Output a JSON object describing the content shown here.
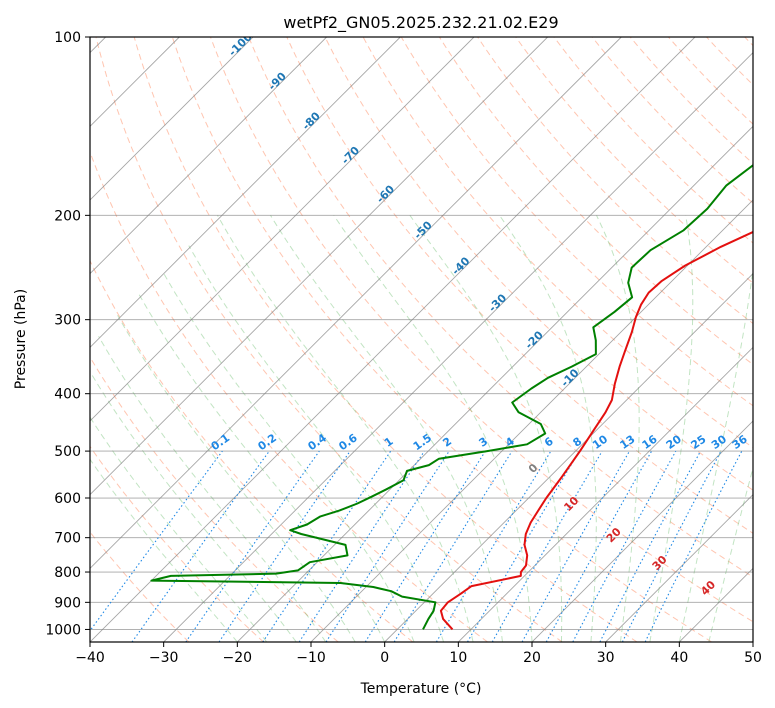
{
  "chart_data": {
    "type": "line",
    "subtype": "skew-T log-P diagram",
    "title": "wetPf2_GN05.2025.232.21.02.E29",
    "xlabel": "Temperature (°C)",
    "ylabel": "Pressure (hPa)",
    "xlim": [
      -40,
      50
    ],
    "ylim": [
      1050,
      100
    ],
    "y_scale": "log",
    "x_ticks": [
      "−40",
      "−30",
      "−20",
      "−10",
      "0",
      "10",
      "20",
      "30",
      "40",
      "50"
    ],
    "y_ticks": [
      {
        "p": 100,
        "label": "100"
      },
      {
        "p": 200,
        "label": "200"
      },
      {
        "p": 300,
        "label": "300"
      },
      {
        "p": 400,
        "label": "400"
      },
      {
        "p": 500,
        "label": "500"
      },
      {
        "p": 600,
        "label": "600"
      },
      {
        "p": 700,
        "label": "700"
      },
      {
        "p": 800,
        "label": "800"
      },
      {
        "p": 900,
        "label": "900"
      },
      {
        "p": 1000,
        "label": "1000"
      }
    ],
    "grid": true,
    "colors": {
      "temperature": "#e3100f",
      "dewpoint": "#008000",
      "isotherm": "#808080",
      "dry_adiabat": "#ff7f50",
      "moist_adiabat": "#66bb6a",
      "mixing_ratio": "#1e88e5",
      "isotherm_label": "#1f77b4",
      "theta_label_warm": "#d62728",
      "theta_label_zero": "#808080"
    },
    "series": [
      {
        "key": "temperature",
        "points": [
          [
            7.5,
            1000
          ],
          [
            4.8,
            960
          ],
          [
            3.4,
            930
          ],
          [
            3.2,
            900
          ],
          [
            3.8,
            870
          ],
          [
            4.2,
            845
          ],
          [
            9.5,
            812
          ],
          [
            9.0,
            800
          ],
          [
            8.8,
            780
          ],
          [
            7.6,
            750
          ],
          [
            5.8,
            720
          ],
          [
            4.5,
            690
          ],
          [
            3.6,
            660
          ],
          [
            3.0,
            630
          ],
          [
            2.4,
            600
          ],
          [
            1.6,
            550
          ],
          [
            0.6,
            500
          ],
          [
            -0.4,
            460
          ],
          [
            -1.2,
            430
          ],
          [
            -2.0,
            410
          ],
          [
            -3.8,
            385
          ],
          [
            -5.5,
            360
          ],
          [
            -6.8,
            340
          ],
          [
            -8.5,
            315
          ],
          [
            -10.0,
            297
          ],
          [
            -11.0,
            283
          ],
          [
            -11.6,
            270
          ],
          [
            -11.4,
            258
          ],
          [
            -10.3,
            243
          ],
          [
            -8.0,
            226
          ],
          [
            -5.2,
            211
          ],
          [
            -2.0,
            198
          ],
          [
            2.0,
            186
          ],
          [
            6.0,
            174
          ],
          [
            10.0,
            160
          ],
          [
            14.0,
            147
          ],
          [
            18.0,
            133
          ],
          [
            22.0,
            120
          ],
          [
            26.0,
            110
          ],
          [
            30.0,
            100
          ]
        ]
      },
      {
        "key": "dewpoint",
        "points": [
          [
            3.5,
            1000
          ],
          [
            2.8,
            960
          ],
          [
            2.4,
            930
          ],
          [
            1.5,
            900
          ],
          [
            -3.8,
            880
          ],
          [
            -6.0,
            862
          ],
          [
            -9.0,
            848
          ],
          [
            -14.0,
            835
          ],
          [
            -40,
            827
          ],
          [
            -38.0,
            812
          ],
          [
            -24.0,
            805
          ],
          [
            -21.5,
            795
          ],
          [
            -21.0,
            770
          ],
          [
            -16.8,
            750
          ],
          [
            -18.5,
            720
          ],
          [
            -26.0,
            690
          ],
          [
            -28.0,
            680
          ],
          [
            -26.5,
            665
          ],
          [
            -25.8,
            645
          ],
          [
            -24.0,
            630
          ],
          [
            -22.5,
            613
          ],
          [
            -21.5,
            597
          ],
          [
            -20.5,
            580
          ],
          [
            -19.4,
            560
          ],
          [
            -20.2,
            540
          ],
          [
            -18.0,
            528
          ],
          [
            -17.5,
            515
          ],
          [
            -12.0,
            500
          ],
          [
            -7.5,
            487
          ],
          [
            -6.5,
            467
          ],
          [
            -8.4,
            450
          ],
          [
            -13.0,
            430
          ],
          [
            -15.2,
            414
          ],
          [
            -14.5,
            392
          ],
          [
            -13.7,
            376
          ],
          [
            -12.0,
            360
          ],
          [
            -10.4,
            343
          ],
          [
            -12.3,
            325
          ],
          [
            -14.4,
            309
          ],
          [
            -13.6,
            291
          ],
          [
            -13.2,
            275
          ],
          [
            -15.7,
            260
          ],
          [
            -17.3,
            245
          ],
          [
            -17.1,
            229
          ],
          [
            -15.3,
            212
          ],
          [
            -15.0,
            195
          ],
          [
            -15.6,
            178
          ],
          [
            -14.6,
            163
          ],
          [
            -12.5,
            149
          ],
          [
            -10.5,
            135
          ],
          [
            -8.0,
            122
          ],
          [
            -3.0,
            115
          ],
          [
            -1.0,
            108
          ],
          [
            -0.2,
            100
          ]
        ]
      }
    ],
    "isotherm_labels": [
      "-100",
      "-90",
      "-80",
      "-70",
      "-60",
      "-50",
      "-40",
      "-30",
      "-20",
      "-10"
    ],
    "mixing_ratio_labels": [
      "0.1",
      "0.2",
      "0.4",
      "0.6",
      "1",
      "1.5",
      "2",
      "3",
      "4",
      "6",
      "8",
      "10",
      "13",
      "16",
      "20",
      "25",
      "30",
      "36"
    ],
    "theta_e_labels": [
      "0",
      "10",
      "20",
      "30",
      "40"
    ]
  }
}
